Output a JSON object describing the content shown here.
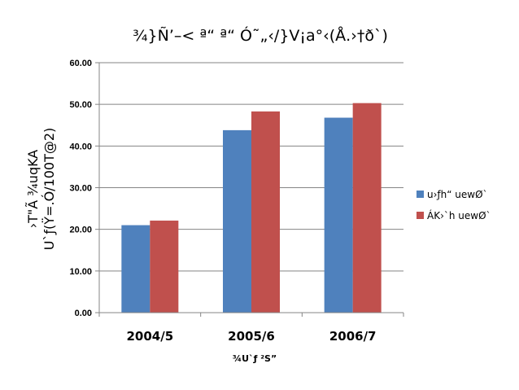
{
  "chart_data": {
    "type": "bar",
    "title": "¾}Ñ’–< ª“ ª“ Ó˜„‹/}V¡a°‹(Å.›†ð`)",
    "xlabel": "¾U`ƒ ²S”",
    "ylabel_lines": [
      "›T\"Ã  ¾uqKA",
      "U`ƒ(Ÿ=.Ó/100T@2)"
    ],
    "categories": [
      "2004/5",
      "2005/6",
      "2006/7"
    ],
    "ylim": [
      0,
      60
    ],
    "yticks": [
      0,
      10,
      20,
      30,
      40,
      50,
      60
    ],
    "ytick_labels": [
      "0.00",
      "10.00",
      "20.00",
      "30.00",
      "40.00",
      "50.00",
      "60.00"
    ],
    "grid": true,
    "legend_position": "right",
    "series": [
      {
        "name": "u›ƒh“ uewØ`",
        "values": [
          21.0,
          43.8,
          46.8
        ],
        "color": "#4f81bd"
      },
      {
        "name": "ÁK›`h uewØ`",
        "values": [
          22.1,
          48.3,
          50.3
        ],
        "color": "#c0504d"
      }
    ]
  }
}
